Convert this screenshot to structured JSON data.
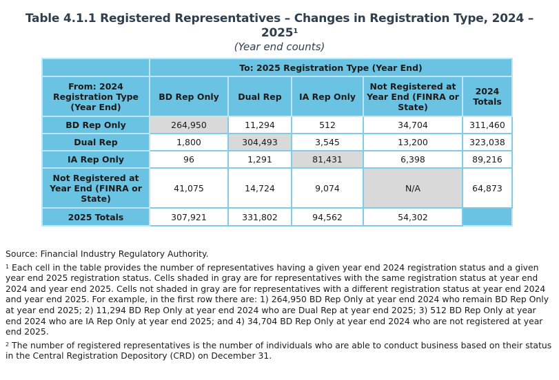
{
  "title": {
    "line1": "Table 4.1.1 Registered Representatives – Changes in Registration Type, 2024 –",
    "line2": "2025",
    "footnote_mark": "1",
    "subtitle": "(Year end counts)"
  },
  "table": {
    "group_header": "To: 2025 Registration Type (Year End)",
    "from_header": "From: 2024 Registration Type (Year End)",
    "columns": [
      "BD Rep Only",
      "Dual Rep",
      "IA Rep Only",
      "Not Registered at Year End (FINRA or State)",
      "2024 Totals"
    ],
    "rows": [
      {
        "label": "BD Rep Only",
        "cells": [
          "264,950",
          "11,294",
          "512",
          "34,704",
          "311,460"
        ]
      },
      {
        "label": "Dual Rep",
        "cells": [
          "1,800",
          "304,493",
          "3,545",
          "13,200",
          "323,038"
        ]
      },
      {
        "label": "IA Rep Only",
        "cells": [
          "96",
          "1,291",
          "81,431",
          "6,398",
          "89,216"
        ]
      },
      {
        "label": "Not Registered at Year End (FINRA or State)",
        "cells": [
          "41,075",
          "14,724",
          "9,074",
          "N/A",
          "64,873"
        ]
      },
      {
        "label": "2025 Totals",
        "cells": [
          "307,921",
          "331,802",
          "94,562",
          "54,302",
          ""
        ]
      }
    ]
  },
  "notes": {
    "source": "Source: Financial Industry Regulatory Authority.",
    "note1_mark": "1",
    "note1": "Each cell in the table provides the number of representatives having a given year end 2024 registration status and a given year end 2025 registration status. Cells shaded in gray are for representatives with the same registration status at year end 2024 and year end 2025. Cells not shaded in gray are for representatives with a different registration status at year end 2024 and year end 2025. For example, in the first row there are: 1) 264,950 BD Rep Only at year end 2024 who remain BD Rep Only at year end 2025; 2) 11,294 BD Rep Only at year end 2024 who are Dual Rep at year end 2025; 3) 512 BD Rep Only at year end 2024 who are IA Rep Only at year end 2025; and 4) 34,704 BD Rep Only at year end 2024 who are not registered at year end 2025.",
    "note2_mark": "2",
    "note2": "The number of registered representatives is the number of individuals who are able to conduct business based on their status in the Central Registration Depository (CRD) on December 31."
  },
  "colors": {
    "header_blue": "#6bc3e4",
    "same_status_gray": "#d9d9d9",
    "title_color": "#2f3f4f"
  }
}
